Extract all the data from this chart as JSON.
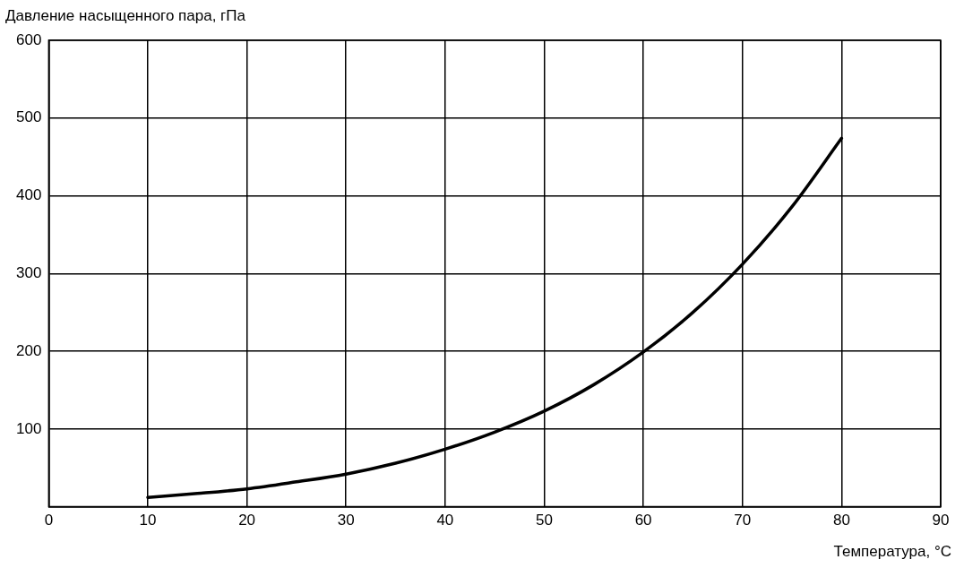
{
  "chart_data": {
    "type": "line",
    "xlabel": "Температура, °C",
    "ylabel": "Давление насыщенного пара, гПа",
    "x": [
      10,
      15,
      20,
      25,
      30,
      35,
      40,
      45,
      50,
      55,
      60,
      65,
      70,
      75,
      80
    ],
    "series": [
      {
        "color": "#000000",
        "values": [
          12,
          17,
          23,
          32,
          42,
          56,
          74,
          96,
          123,
          157,
          199,
          250,
          312,
          386,
          474
        ]
      }
    ],
    "xlim": [
      0,
      90
    ],
    "xticks": [
      0,
      10,
      20,
      30,
      40,
      50,
      60,
      70,
      80,
      90
    ],
    "ylim": [
      0,
      600
    ],
    "yticks": [
      {
        "value": 0,
        "label": null
      },
      100,
      200,
      300,
      400,
      500,
      600
    ],
    "grid": true,
    "legend": false,
    "marker": "none",
    "line_style": "solid"
  }
}
